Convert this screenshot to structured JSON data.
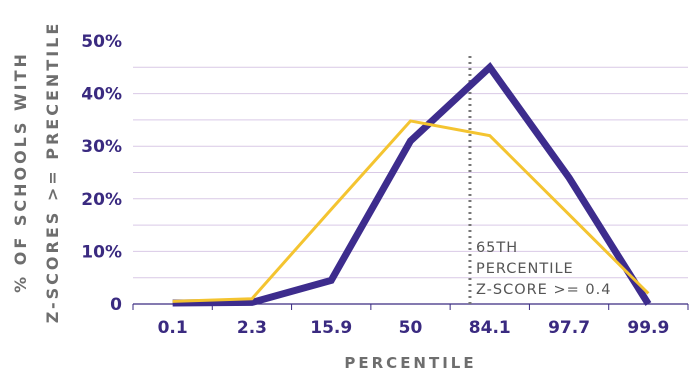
{
  "chart_data": {
    "type": "line",
    "categories": [
      "0.1",
      "2.3",
      "15.9",
      "50",
      "84.1",
      "97.7",
      "99.9"
    ],
    "xlabel": "PERCENTILE",
    "ylabel_lines": [
      "% OF SCHOOLS WITH",
      "Z-SCORES >= PRECENTILE"
    ],
    "ylim": [
      0,
      50
    ],
    "yticks": [
      "0",
      "10%",
      "20%",
      "30%",
      "40%",
      "50%"
    ],
    "grid": true,
    "series": [
      {
        "color": "#3d2c8d",
        "values": [
          0.2,
          0.3,
          4.5,
          31,
          45,
          24,
          0
        ]
      },
      {
        "color": "#f4c430",
        "values": [
          0.5,
          1,
          18,
          34.8,
          32,
          17,
          2
        ]
      }
    ],
    "annotation": {
      "lines": [
        "65TH",
        "PERCENTILE",
        "Z-SCORE >= 0.4"
      ],
      "x_category_position": 3.75
    },
    "colors": {
      "grid": "#d9c9e6",
      "axis": "#3a2a80"
    }
  }
}
